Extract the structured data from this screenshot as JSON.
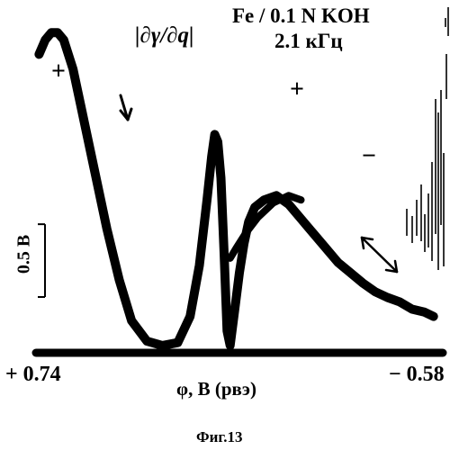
{
  "figure": {
    "title_formula": "|∂γ/∂q|",
    "title_system": "Fe / 0.1 N KOH",
    "title_frequency": "2.1 кГц",
    "caption": "Фиг.13",
    "colors": {
      "curve": "#000000",
      "background": "#ffffff"
    }
  },
  "chart_data": {
    "type": "line",
    "title": "",
    "xlabel": "φ, B (рвэ)",
    "ylabel": "",
    "x_tick_labels": [
      "+ 0.74",
      "− 0.58"
    ],
    "xlim": [
      0.74,
      -0.58
    ],
    "ylim": [
      0,
      2.3
    ],
    "scale_bar_label": "0.5 B",
    "scale_bar_value": 0.5,
    "grid": false,
    "annotations": {
      "sign_left": "+",
      "sign_peak": "+",
      "sign_right": "−",
      "arrow_direction": "↓",
      "double_arrow": "↔"
    },
    "series": [
      {
        "name": "",
        "x": [
          0.73,
          0.71,
          0.69,
          0.67,
          0.65,
          0.62,
          0.59,
          0.55,
          0.51,
          0.47,
          0.43,
          0.38,
          0.33,
          0.28,
          0.24,
          0.21,
          0.185,
          0.17,
          0.16,
          0.15,
          0.14,
          0.13,
          0.12,
          0.11,
          0.095,
          0.08,
          0.065,
          0.05,
          0.03,
          0.0,
          -0.04,
          -0.08,
          -0.12,
          -0.16,
          -0.2,
          -0.24,
          -0.28,
          -0.32,
          -0.36,
          -0.4,
          -0.44,
          -0.48,
          -0.52,
          -0.55
        ],
        "values": [
          2.05,
          2.15,
          2.2,
          2.2,
          2.15,
          1.95,
          1.65,
          1.25,
          0.85,
          0.5,
          0.22,
          0.08,
          0.05,
          0.07,
          0.25,
          0.6,
          1.05,
          1.35,
          1.5,
          1.45,
          1.2,
          0.7,
          0.15,
          0.05,
          0.3,
          0.55,
          0.75,
          0.9,
          1.0,
          1.05,
          1.08,
          1.02,
          0.92,
          0.82,
          0.72,
          0.62,
          0.55,
          0.48,
          0.42,
          0.38,
          0.35,
          0.3,
          0.28,
          0.25
        ]
      },
      {
        "name": "",
        "x": [
          0.11,
          0.09,
          0.06,
          0.02,
          -0.03,
          -0.08,
          -0.12
        ],
        "values": [
          0.65,
          0.72,
          0.82,
          0.93,
          1.03,
          1.08,
          1.05
        ]
      },
      {
        "name": "",
        "x": [
          0.74,
          0.4,
          0.0,
          -0.58
        ],
        "values": [
          0.0,
          0.0,
          0.0,
          0.0
        ]
      }
    ]
  }
}
